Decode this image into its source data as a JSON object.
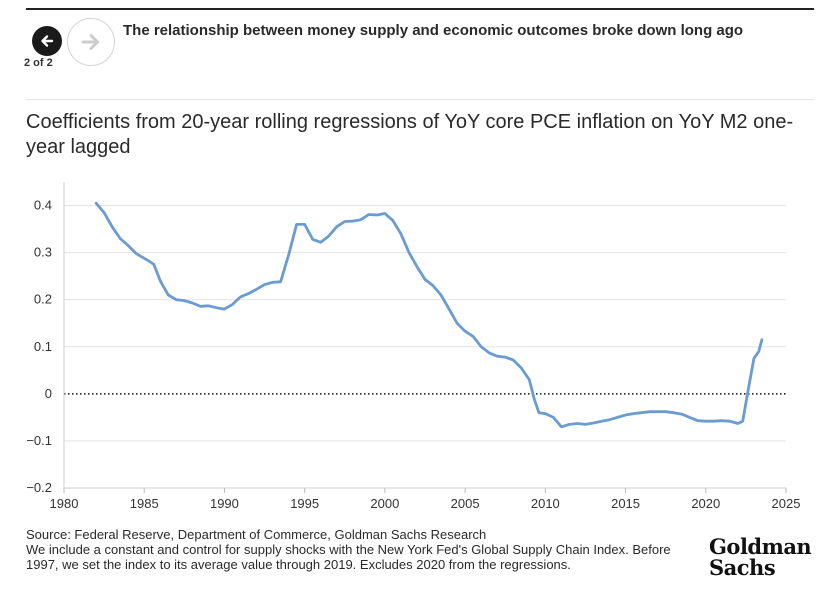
{
  "header": {
    "headline": "The relationship between money supply and economic outcomes broke down long ago",
    "pager": "2 of 2",
    "prev_icon": "arrow-left-icon",
    "next_icon": "arrow-right-icon"
  },
  "chart_title": "Coefficients from 20-year rolling regressions of YoY core PCE inflation on YoY M2 one-year lagged",
  "chart_data": {
    "type": "line",
    "title": "Coefficients from 20-year rolling regressions of YoY core PCE inflation on YoY M2 one-year lagged",
    "xlim": [
      1980,
      2025
    ],
    "ylim": [
      -0.2,
      0.45
    ],
    "xticks": [
      1980,
      1985,
      1990,
      1995,
      2000,
      2005,
      2010,
      2015,
      2020,
      2025
    ],
    "xtick_labels": [
      "1980",
      "1985",
      "1990",
      "1995",
      "2000",
      "2005",
      "2010",
      "2015",
      "2020",
      "2025"
    ],
    "yticks": [
      -0.2,
      -0.1,
      0,
      0.1,
      0.2,
      0.3,
      0.4
    ],
    "ytick_labels": [
      "−0.2",
      "−0.1",
      "0",
      "0.1",
      "0.2",
      "0.3",
      "0.4"
    ],
    "grid": "horizontal",
    "zero_line": "dotted",
    "line_color": "#6b9bd1",
    "series": [
      {
        "x": [
          1982.0,
          1982.5,
          1983.0,
          1983.5,
          1984.0,
          1984.5,
          1985.0,
          1985.3,
          1985.6,
          1986.0,
          1986.5,
          1987.0,
          1987.5,
          1988.0,
          1988.5,
          1989.0,
          1989.5,
          1990.0,
          1990.5,
          1991.0,
          1991.5,
          1992.0,
          1992.5,
          1993.0,
          1993.5,
          1994.0,
          1994.5,
          1995.0,
          1995.5,
          1996.0,
          1996.5,
          1997.0,
          1997.5,
          1998.0,
          1998.5,
          1999.0,
          1999.5,
          2000.0,
          2000.5,
          2001.0,
          2001.5,
          2002.0,
          2002.5,
          2003.0,
          2003.5,
          2004.0,
          2004.5,
          2005.0,
          2005.5,
          2006.0,
          2006.5,
          2007.0,
          2007.5,
          2008.0,
          2008.5,
          2009.0,
          2009.3,
          2009.6,
          2010.0,
          2010.5,
          2011.0,
          2011.5,
          2012.0,
          2012.5,
          2013.0,
          2013.5,
          2014.0,
          2014.5,
          2015.0,
          2015.5,
          2016.0,
          2016.5,
          2017.0,
          2017.5,
          2018.0,
          2018.5,
          2019.0,
          2019.5,
          2020.0,
          2020.5,
          2021.0,
          2021.5,
          2022.0,
          2022.3,
          2022.6,
          2023.0,
          2023.3,
          2023.5
        ],
        "y": [
          0.405,
          0.385,
          0.355,
          0.33,
          0.315,
          0.298,
          0.288,
          0.282,
          0.275,
          0.24,
          0.21,
          0.2,
          0.198,
          0.193,
          0.186,
          0.187,
          0.183,
          0.18,
          0.19,
          0.206,
          0.213,
          0.222,
          0.232,
          0.237,
          0.238,
          0.295,
          0.36,
          0.36,
          0.328,
          0.322,
          0.335,
          0.355,
          0.366,
          0.367,
          0.37,
          0.381,
          0.38,
          0.383,
          0.368,
          0.34,
          0.3,
          0.27,
          0.243,
          0.23,
          0.21,
          0.18,
          0.15,
          0.133,
          0.122,
          0.1,
          0.087,
          0.08,
          0.078,
          0.072,
          0.055,
          0.03,
          -0.01,
          -0.04,
          -0.042,
          -0.05,
          -0.07,
          -0.065,
          -0.063,
          -0.065,
          -0.062,
          -0.058,
          -0.055,
          -0.05,
          -0.045,
          -0.042,
          -0.04,
          -0.038,
          -0.038,
          -0.038,
          -0.04,
          -0.043,
          -0.05,
          -0.057,
          -0.058,
          -0.058,
          -0.057,
          -0.058,
          -0.063,
          -0.058,
          0.0,
          0.075,
          0.09,
          0.115
        ]
      }
    ]
  },
  "footer": {
    "source": "Source: Federal Reserve, Department of Commerce, Goldman Sachs Research",
    "note": "We include a constant and control for supply shocks with the New York Fed's Global Supply Chain Index. Before 1997, we set the index to its average value through 2019. Excludes 2020 from the regressions."
  },
  "logo": {
    "line1": "Goldman",
    "line2": "Sachs"
  }
}
